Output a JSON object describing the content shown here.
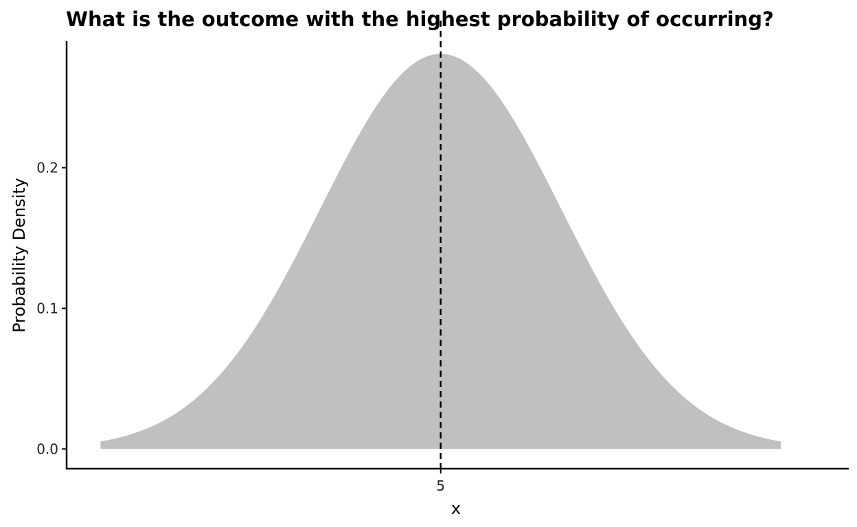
{
  "chart_data": {
    "type": "area",
    "title": "What is the outcome with the highest probability of occurring?",
    "xlabel": "x",
    "ylabel": "Probability Density",
    "distribution": "normal",
    "mean": 5,
    "sd": 1.42,
    "x_range": [
      1,
      9
    ],
    "xlim": [
      0.6,
      9.8
    ],
    "ylim": [
      -0.014,
      0.29
    ],
    "x_ticks": [
      5
    ],
    "x_tick_labels": [
      "5"
    ],
    "y_ticks": [
      0.0,
      0.1,
      0.2
    ],
    "y_tick_labels": [
      "0.0",
      "0.1",
      "0.2"
    ],
    "peak_value": 0.281,
    "vline": {
      "x": 5,
      "style": "dashed",
      "color": "#000000"
    },
    "fill_color": "#c0c0c0",
    "grid": false
  }
}
